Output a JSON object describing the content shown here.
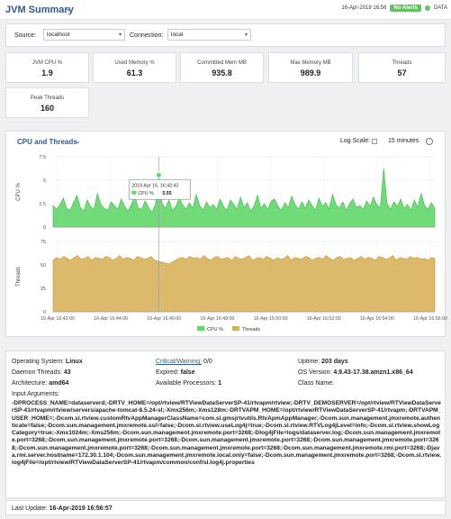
{
  "header": {
    "title": "JVM Summary",
    "timestamp": "16-Apr-2019 16:56",
    "alert_badge": "No Alerts",
    "data_label": "DATA"
  },
  "filters": {
    "source_label": "Source:",
    "source_value": "localhost",
    "connection_label": "Connection:",
    "connection_value": "local"
  },
  "kpis": [
    {
      "label": "JVM CPU %",
      "value": "1.9"
    },
    {
      "label": "Used Memory %",
      "value": "61.3"
    },
    {
      "label": "Committed Mem MB",
      "value": "935.8"
    },
    {
      "label": "Max Memory MB",
      "value": "989.9"
    },
    {
      "label": "Threads",
      "value": "57"
    },
    {
      "label": "Peak Threads",
      "value": "160"
    }
  ],
  "chart": {
    "title": "CPU and Threads",
    "log_scale_label": "Log Scale:",
    "time_range": "15 minutes",
    "tooltip_time": "2019 Apr 16, 16:43:42",
    "tooltip_series": "CPU %",
    "tooltip_value": "5.55"
  },
  "chart_data": {
    "type": "area",
    "x_ticks": [
      "16-Apr 16:42:00",
      "16-Apr 16:44:00",
      "16-Apr 16:46:00",
      "16-Apr 16:48:00",
      "16-Apr 16:50:00",
      "16-Apr 16:52:00",
      "16-Apr 16:54:00",
      "16-Apr 16:56:00"
    ],
    "series": [
      {
        "name": "CPU %",
        "color": "#62d66a",
        "ylabel": "CPU %",
        "ylim": [
          0,
          7.5
        ],
        "y_ticks": [
          "0",
          "2.5",
          "5",
          "7.5"
        ],
        "values": [
          2.3,
          1.9,
          2.4,
          3.1,
          2.0,
          1.8,
          2.6,
          3.4,
          2.1,
          1.7,
          2.9,
          2.2,
          1.9,
          3.6,
          2.4,
          2.0,
          1.8,
          2.7,
          2.3,
          1.9,
          3.0,
          2.2,
          1.7,
          2.5,
          3.3,
          2.0,
          1.9,
          2.8,
          2.1,
          1.6,
          2.4,
          5.55,
          2.5,
          2.0,
          2.9,
          1.8,
          2.2,
          3.1,
          2.4,
          1.9,
          2.6,
          2.0,
          3.5,
          2.3,
          1.8,
          2.7,
          2.1,
          2.4,
          1.9,
          3.0,
          2.2,
          1.8,
          2.9,
          2.4,
          1.9,
          3.2,
          2.1,
          2.6,
          1.7,
          2.3,
          3.4,
          2.0,
          2.5,
          1.9,
          2.8,
          3.0,
          2.2,
          1.8,
          2.6,
          2.1,
          3.3,
          2.4,
          1.9,
          2.7,
          2.0,
          2.9,
          2.3,
          1.8,
          3.1,
          2.2,
          2.6,
          1.9,
          3.5,
          2.4,
          2.0,
          2.7,
          1.8,
          2.5,
          3.0,
          2.1,
          2.3,
          1.9,
          2.8,
          2.2,
          3.2,
          2.4,
          2.0,
          6.3,
          2.5,
          1.9,
          2.7,
          2.2,
          3.0,
          2.0,
          2.4,
          1.8,
          2.9,
          2.1,
          3.6,
          2.3,
          1.9,
          2.6,
          2.0
        ]
      },
      {
        "name": "Threads",
        "color": "#d9b15b",
        "ylabel": "Threads",
        "ylim": [
          0,
          75
        ],
        "y_ticks": [
          "0",
          "25",
          "50",
          "75"
        ],
        "values": [
          55,
          58,
          56,
          59,
          57,
          55,
          58,
          60,
          56,
          57,
          59,
          55,
          58,
          57,
          56,
          59,
          58,
          55,
          57,
          60,
          56,
          58,
          57,
          55,
          59,
          58,
          56,
          57,
          59,
          55,
          54,
          53,
          52,
          51,
          53,
          55,
          57,
          58,
          56,
          59,
          57,
          58,
          56,
          60,
          57,
          55,
          58,
          59,
          56,
          57,
          58,
          55,
          59,
          57,
          56,
          58,
          60,
          55,
          57,
          58,
          56,
          59,
          57,
          55,
          58,
          56,
          57,
          60,
          55,
          58,
          57,
          56,
          59,
          58,
          55,
          57,
          58,
          56,
          60,
          57,
          55,
          58,
          59,
          56,
          57,
          58,
          55,
          57,
          59,
          56,
          58,
          57,
          55,
          59,
          58,
          56,
          57,
          60,
          55,
          58,
          57,
          56,
          59,
          57,
          58,
          56,
          57,
          55,
          58,
          57
        ]
      }
    ],
    "legend": [
      "CPU %",
      "Threads"
    ],
    "legend_position": "bottom-center",
    "grid": true
  },
  "info": {
    "os_label": "Operating System:",
    "os_value": "Linux",
    "warning_label": "Critical/Warning:",
    "warning_value": "0/0",
    "uptime_label": "Uptime:",
    "uptime_value": "203 days",
    "daemon_label": "Daemon Threads:",
    "daemon_value": "43",
    "expired_label": "Expired:",
    "expired_value": "false",
    "osver_label": "OS Version:",
    "osver_value": "4.9.43-17.38.amzn1.x86_64",
    "arch_label": "Architecture:",
    "arch_value": "amd64",
    "proc_label": "Available Processors:",
    "proc_value": "1",
    "class_label": "Class Name:",
    "class_value": "",
    "args_label": "Input Arguments:",
    "args_value": "-DPROCESS_NAME=dataserverd;-DRTV_HOME=/opt/rtview/RTViewDataServerSP-41/rtvapm/rtview;-DRTV_DEMOSERVER=/opt/rtview/RTViewDataServerSP-41/rtvapm/rtview/servers/apache-tomcat-8.5.24-sl;-Xmx256m;-Xms128m;-DRTVAPM_HOME=/opt/rtview/RTViewDataServerSP-41/rtvapm;-DRTVAPM_USER_HOME=;-Dcom.sl.rtview.customRtvAppManagerClassName=com.sl.gmsjrtvutils.RtvApmAppManager;-Dcom.sun.management.jmxremote.authenticate=false;-Dcom.sun.management.jmxremote.ssl=false;-Dcom.sl.rtview.useLog4j=true;-Dcom.sl.rtview.RTVLog4jLevel=info;-Dcom.sl.rtview.showLogCategory=true;-Xmx1024m;-Xms256m;-Dcom.sun.management.jmxremote.port=3268;-Dlog4jFile=logs/dataserver.log;-Dcom.sun.management.jmxremote.port=3268;-Dcom.sun.management.jmxremote.port=3268;-Dcom.sun.management.jmxremote.port=3268;-Dcom.sun.management.jmxremote.port=3268;-Dcom.sun.management.jmxremote.port=3268;-Dcom.sun.management.jmxremote.port=3268;-Dcom.sun.management.jmxremote.rmi.port=3268;-Djava.rmi.server.hostname=172.30.1.104;-Dcom.sun.management.jmxremote.local.only=false;-Dcom.sun.management.jmxremote.port=3268;-Dcom.sl.rtview.log4jFile=/opt/rtview/RTViewDataServerSP-41/rtvapm/common/conf/sl.log4j.properties"
  },
  "footer": {
    "label": "Last Update:",
    "value": "16-Apr-2019 16:56:57"
  },
  "icons": {
    "title_chevron": "chevron-down-icon",
    "status_dot": "status-dot-icon",
    "clock": "clock-icon",
    "dropdown_caret": "caret-down-icon"
  }
}
